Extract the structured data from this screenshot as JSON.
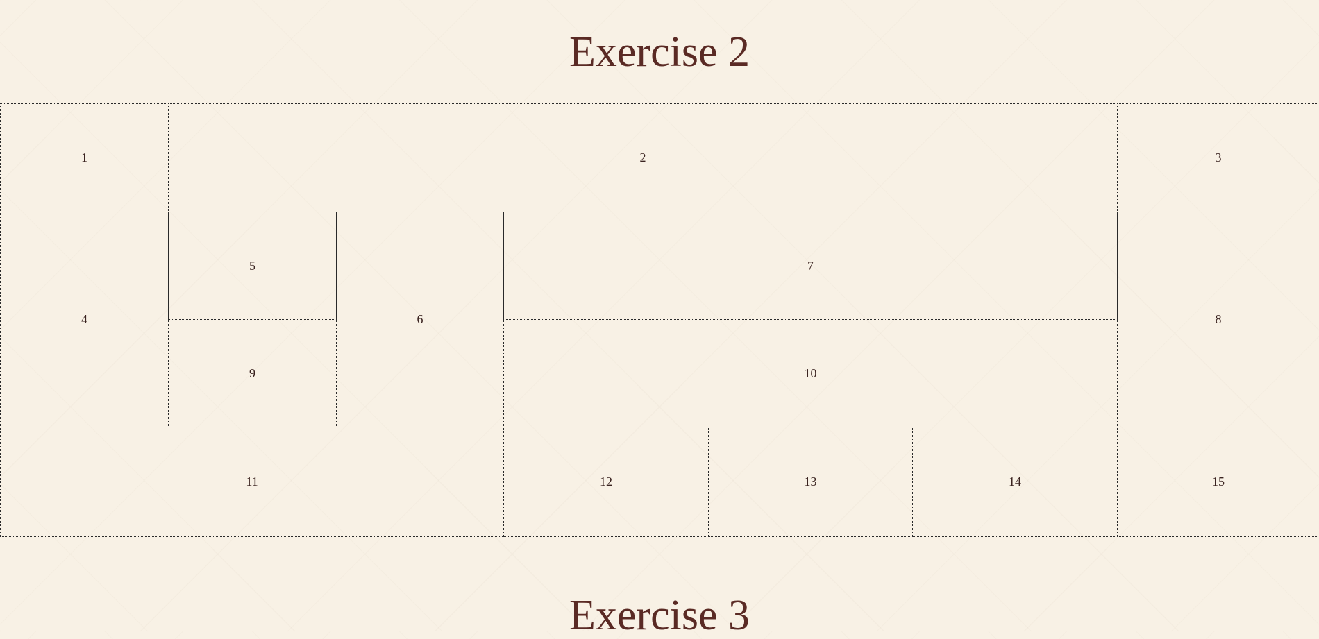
{
  "headings": {
    "exercise_2": "Exercise 2",
    "exercise_3": "Exercise 3"
  },
  "grid": {
    "cells": {
      "c1": "1",
      "c2": "2",
      "c3": "3",
      "c4": "4",
      "c5": "5",
      "c6": "6",
      "c7": "7",
      "c8": "8",
      "c9": "9",
      "c10": "10",
      "c11": "11",
      "c12": "12",
      "c13": "13",
      "c14": "14",
      "c15": "15"
    }
  },
  "colors": {
    "background": "#f8f1e5",
    "heading_text": "#5a2a24",
    "cell_border": "#2a2a2a",
    "cell_text": "#3a2320"
  }
}
